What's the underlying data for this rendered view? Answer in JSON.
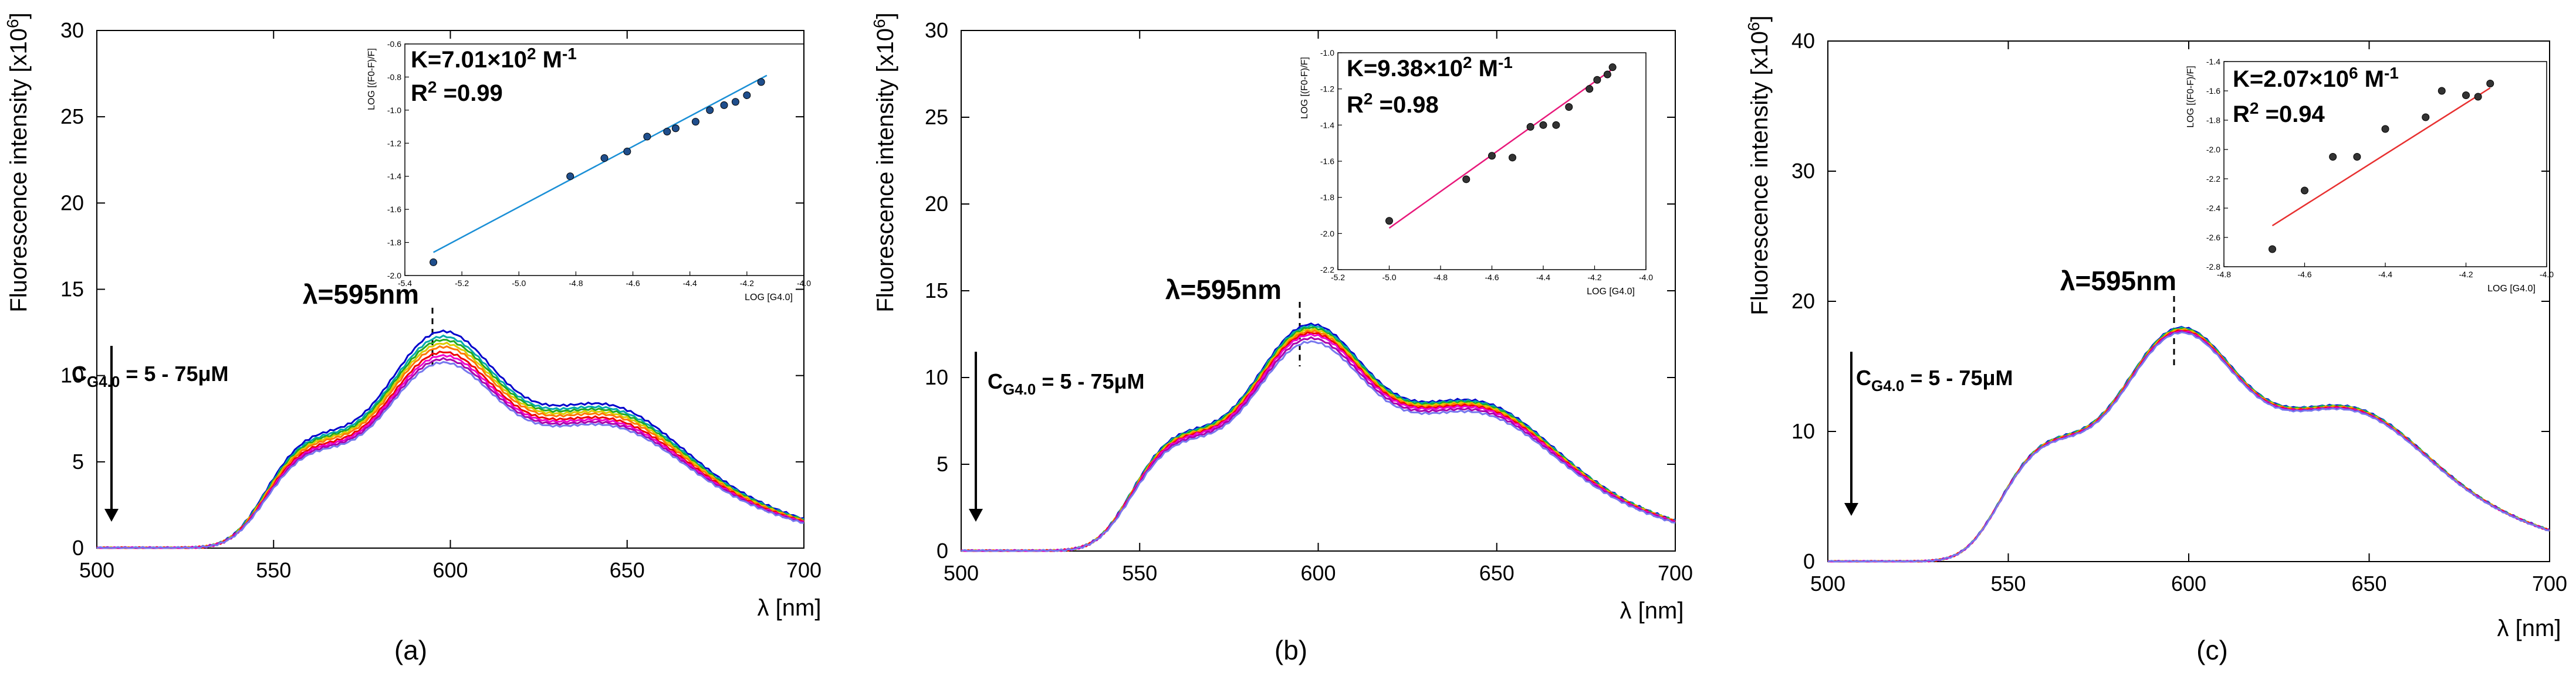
{
  "figure": {
    "panels": [
      {
        "label": "(a)",
        "lambda_note": "λ=595nm",
        "conc_main": "C",
        "conc_sub": "G4.0",
        "conc_tail": " = 5 - 75μM",
        "ylabel_main": "Fluorescence intensity [x10",
        "ylabel_exp": "6",
        "ylabel_tail": "]",
        "xlabel": "λ [nm]",
        "inset": {
          "k_main": "K=7.01×10",
          "k_exp": "2",
          "k_unit": " M",
          "k_unit_exp": "-1",
          "r_main": "R",
          "r_exp": "2",
          "r_tail": " =0.99"
        }
      },
      {
        "label": "(b)",
        "lambda_note": "λ=595nm",
        "conc_main": "C",
        "conc_sub": "G4.0",
        "conc_tail": " = 5 - 75μM",
        "ylabel_main": "Fluorescence intensity [x10",
        "ylabel_exp": "6",
        "ylabel_tail": "]",
        "xlabel": "λ [nm]",
        "inset": {
          "k_main": "K=9.38×10",
          "k_exp": "2",
          "k_unit": " M",
          "k_unit_exp": "-1",
          "r_main": "R",
          "r_exp": "2",
          "r_tail": " =0.98"
        }
      },
      {
        "label": "(c)",
        "lambda_note": "λ=595nm",
        "conc_main": "C",
        "conc_sub": "G4.0",
        "conc_tail": " = 5 - 75μM",
        "ylabel_main": "Fluorescence intensity [x10",
        "ylabel_exp": "6",
        "ylabel_tail": "]",
        "xlabel": "λ [nm]",
        "inset": {
          "k_main": "K=2.07×10",
          "k_exp": "6",
          "k_unit": " M",
          "k_unit_exp": "-1",
          "r_main": "R",
          "r_exp": "2",
          "r_tail": " =0.94"
        }
      }
    ]
  },
  "colors": {
    "series": [
      "#0000cc",
      "#00aaaa",
      "#22aa22",
      "#ddcc00",
      "#ff7700",
      "#ee0000",
      "#ee00cc",
      "#aa00aa",
      "#7777ee"
    ],
    "inset_line_a": "#1a8fd6",
    "inset_line_b": "#e8187a",
    "inset_line_c": "#e83030",
    "axis": "#000000"
  },
  "chart_data": [
    {
      "type": "line",
      "title": "",
      "xlabel": "λ [nm]",
      "ylabel": "Fluorescence intensity [x10^6]",
      "xlim": [
        500,
        700
      ],
      "ylim": [
        0,
        30
      ],
      "xticks": [
        "500",
        "550",
        "600",
        "650",
        "700"
      ],
      "yticks": [
        "0",
        "5",
        "10",
        "15",
        "20",
        "25",
        "30"
      ],
      "series_count": 9,
      "peak_values": [
        12.5,
        12.2,
        12.0,
        11.8,
        11.6,
        11.3,
        11.1,
        10.9,
        10.7
      ],
      "inset": {
        "type": "scatter",
        "xlabel": "LOG [G4.0]",
        "ylabel": "LOG [(F0-F)/F]",
        "xlim": [
          -5.4,
          -4.0
        ],
        "ylim": [
          -2.0,
          -0.6
        ],
        "xticks": [
          "-5.4",
          "-5.2",
          "-5.0",
          "-4.8",
          "-4.6",
          "-4.4",
          "-4.2",
          "-4.0"
        ],
        "yticks": [
          "-0.6",
          "-0.8",
          "-1.0",
          "-1.2",
          "-1.4",
          "-1.6",
          "-1.8",
          "-2.0"
        ],
        "points": [
          [
            -5.3,
            -1.92
          ],
          [
            -4.82,
            -1.4
          ],
          [
            -4.7,
            -1.29
          ],
          [
            -4.62,
            -1.25
          ],
          [
            -4.55,
            -1.16
          ],
          [
            -4.48,
            -1.13
          ],
          [
            -4.45,
            -1.11
          ],
          [
            -4.38,
            -1.07
          ],
          [
            -4.33,
            -1.0
          ],
          [
            -4.28,
            -0.97
          ],
          [
            -4.24,
            -0.95
          ],
          [
            -4.2,
            -0.91
          ],
          [
            -4.15,
            -0.83
          ]
        ],
        "fit": [
          [
            -5.3,
            -1.86
          ],
          [
            -4.13,
            -0.79
          ]
        ]
      }
    },
    {
      "type": "line",
      "title": "",
      "xlabel": "λ [nm]",
      "ylabel": "Fluorescence intensity [x10^6]",
      "xlim": [
        500,
        700
      ],
      "ylim": [
        0,
        30
      ],
      "xticks": [
        "500",
        "550",
        "600",
        "650",
        "700"
      ],
      "yticks": [
        "0",
        "5",
        "10",
        "15",
        "20",
        "25",
        "30"
      ],
      "series_count": 9,
      "peak_values": [
        13.0,
        12.9,
        12.8,
        12.7,
        12.6,
        12.5,
        12.4,
        12.2,
        12.0
      ],
      "inset": {
        "type": "scatter",
        "xlabel": "LOG [G4.0]",
        "ylabel": "LOG [(F0-F)/F]",
        "xlim": [
          -5.2,
          -4.0
        ],
        "ylim": [
          -2.2,
          -1.0
        ],
        "xticks": [
          "-5.2",
          "-5.0",
          "-4.8",
          "-4.6",
          "-4.4",
          "-4.2",
          "-4.0"
        ],
        "yticks": [
          "-1.0",
          "-1.2",
          "-1.4",
          "-1.6",
          "-1.8",
          "-2.0",
          "-2.2"
        ],
        "points": [
          [
            -5.0,
            -1.93
          ],
          [
            -4.7,
            -1.7
          ],
          [
            -4.6,
            -1.57
          ],
          [
            -4.52,
            -1.58
          ],
          [
            -4.45,
            -1.41
          ],
          [
            -4.4,
            -1.4
          ],
          [
            -4.35,
            -1.4
          ],
          [
            -4.3,
            -1.3
          ],
          [
            -4.22,
            -1.2
          ],
          [
            -4.19,
            -1.15
          ],
          [
            -4.15,
            -1.12
          ],
          [
            -4.13,
            -1.08
          ]
        ],
        "fit": [
          [
            -5.0,
            -1.97
          ],
          [
            -4.12,
            -1.08
          ]
        ]
      }
    },
    {
      "type": "line",
      "title": "",
      "xlabel": "λ [nm]",
      "ylabel": "Fluorescence intensity [x10^6]",
      "xlim": [
        500,
        700
      ],
      "ylim": [
        0,
        40
      ],
      "xticks": [
        "500",
        "550",
        "600",
        "650",
        "700"
      ],
      "yticks": [
        "0",
        "10",
        "20",
        "30",
        "40"
      ],
      "series_count": 9,
      "peak_values": [
        17.9,
        17.85,
        17.8,
        17.75,
        17.7,
        17.65,
        17.6,
        17.55,
        17.5
      ],
      "inset": {
        "type": "scatter",
        "xlabel": "LOG [G4.0]",
        "ylabel": "LOG [(F0-F)/F]",
        "xlim": [
          -4.8,
          -4.0
        ],
        "ylim": [
          -2.8,
          -1.4
        ],
        "xticks": [
          "-4.8",
          "-4.6",
          "-4.4",
          "-4.2",
          "-4.0"
        ],
        "yticks": [
          "-1.4",
          "-1.6",
          "-1.8",
          "-2.0",
          "-2.2",
          "-2.4",
          "-2.6",
          "-2.8"
        ],
        "points": [
          [
            -4.68,
            -2.68
          ],
          [
            -4.6,
            -2.28
          ],
          [
            -4.53,
            -2.05
          ],
          [
            -4.47,
            -2.05
          ],
          [
            -4.4,
            -1.86
          ],
          [
            -4.3,
            -1.78
          ],
          [
            -4.26,
            -1.6
          ],
          [
            -4.2,
            -1.63
          ],
          [
            -4.17,
            -1.64
          ],
          [
            -4.14,
            -1.55
          ]
        ],
        "fit": [
          [
            -4.68,
            -2.52
          ],
          [
            -4.14,
            -1.58
          ]
        ]
      }
    }
  ]
}
